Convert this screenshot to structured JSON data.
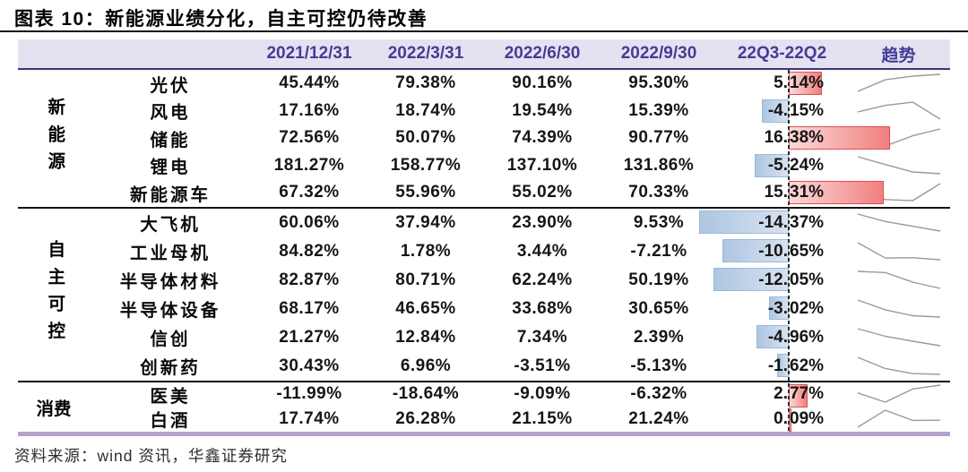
{
  "title": "图表 10：新能源业绩分化，自主可控仍待改善",
  "source": "资料来源：wind 资讯，华鑫证券研究",
  "colors": {
    "header_bg": "#e4e2f0",
    "header_text": "#463c96",
    "header_rule": "#3b3374",
    "title_rule": "#141414",
    "group_divider": "#141414",
    "table_bottom_rule": "#b5a3cf",
    "positive_bar_border": "#dd4f4f",
    "positive_bar_fill": "#f17f7f",
    "negative_bar_border": "#9db9d9",
    "negative_bar_fill": "#adc6e2",
    "sparkline": "#9a9a9a",
    "zero_axis": "#2b2b2b"
  },
  "chart_data": {
    "type": "table",
    "title": "图表 10：新能源业绩分化，自主可控仍待改善",
    "columns": [
      "2021/12/31",
      "2022/3/31",
      "2022/6/30",
      "2022/9/30",
      "22Q3-22Q2",
      "趋势"
    ],
    "value_unit": "%",
    "delta_axis": "dashed zero line, red bars = positive, blue bars = negative",
    "trend_column": "sparkline of the four quarterly values",
    "groups": [
      {
        "name": "新能源",
        "rows": [
          {
            "label": "光伏",
            "values": [
              45.44,
              79.38,
              90.16,
              95.3
            ],
            "delta": 5.14
          },
          {
            "label": "风电",
            "values": [
              17.16,
              18.74,
              19.54,
              15.39
            ],
            "delta": -4.15
          },
          {
            "label": "储能",
            "values": [
              72.56,
              50.07,
              74.39,
              90.77
            ],
            "delta": 16.38
          },
          {
            "label": "锂电",
            "values": [
              181.27,
              158.77,
              137.1,
              131.86
            ],
            "delta": -5.24
          },
          {
            "label": "新能源车",
            "values": [
              67.32,
              55.96,
              55.02,
              70.33
            ],
            "delta": 15.31
          }
        ]
      },
      {
        "name": "自主可控",
        "rows": [
          {
            "label": "大飞机",
            "values": [
              60.06,
              37.94,
              23.9,
              9.53
            ],
            "delta": -14.37
          },
          {
            "label": "工业母机",
            "values": [
              84.82,
              1.78,
              3.44,
              -7.21
            ],
            "delta": -10.65
          },
          {
            "label": "半导体材料",
            "values": [
              82.87,
              80.71,
              62.24,
              50.19
            ],
            "delta": -12.05
          },
          {
            "label": "半导体设备",
            "values": [
              68.17,
              46.65,
              33.68,
              30.65
            ],
            "delta": -3.02
          },
          {
            "label": "信创",
            "values": [
              21.27,
              12.84,
              7.34,
              2.39
            ],
            "delta": -4.96
          },
          {
            "label": "创新药",
            "values": [
              30.43,
              6.96,
              -3.51,
              -5.13
            ],
            "delta": -1.62
          }
        ]
      },
      {
        "name": "消费",
        "rows": [
          {
            "label": "医美",
            "values": [
              -11.99,
              -18.64,
              -9.09,
              -6.32
            ],
            "delta": 2.77
          },
          {
            "label": "白酒",
            "values": [
              17.74,
              26.28,
              21.15,
              21.24
            ],
            "delta": 0.09
          }
        ]
      }
    ]
  }
}
